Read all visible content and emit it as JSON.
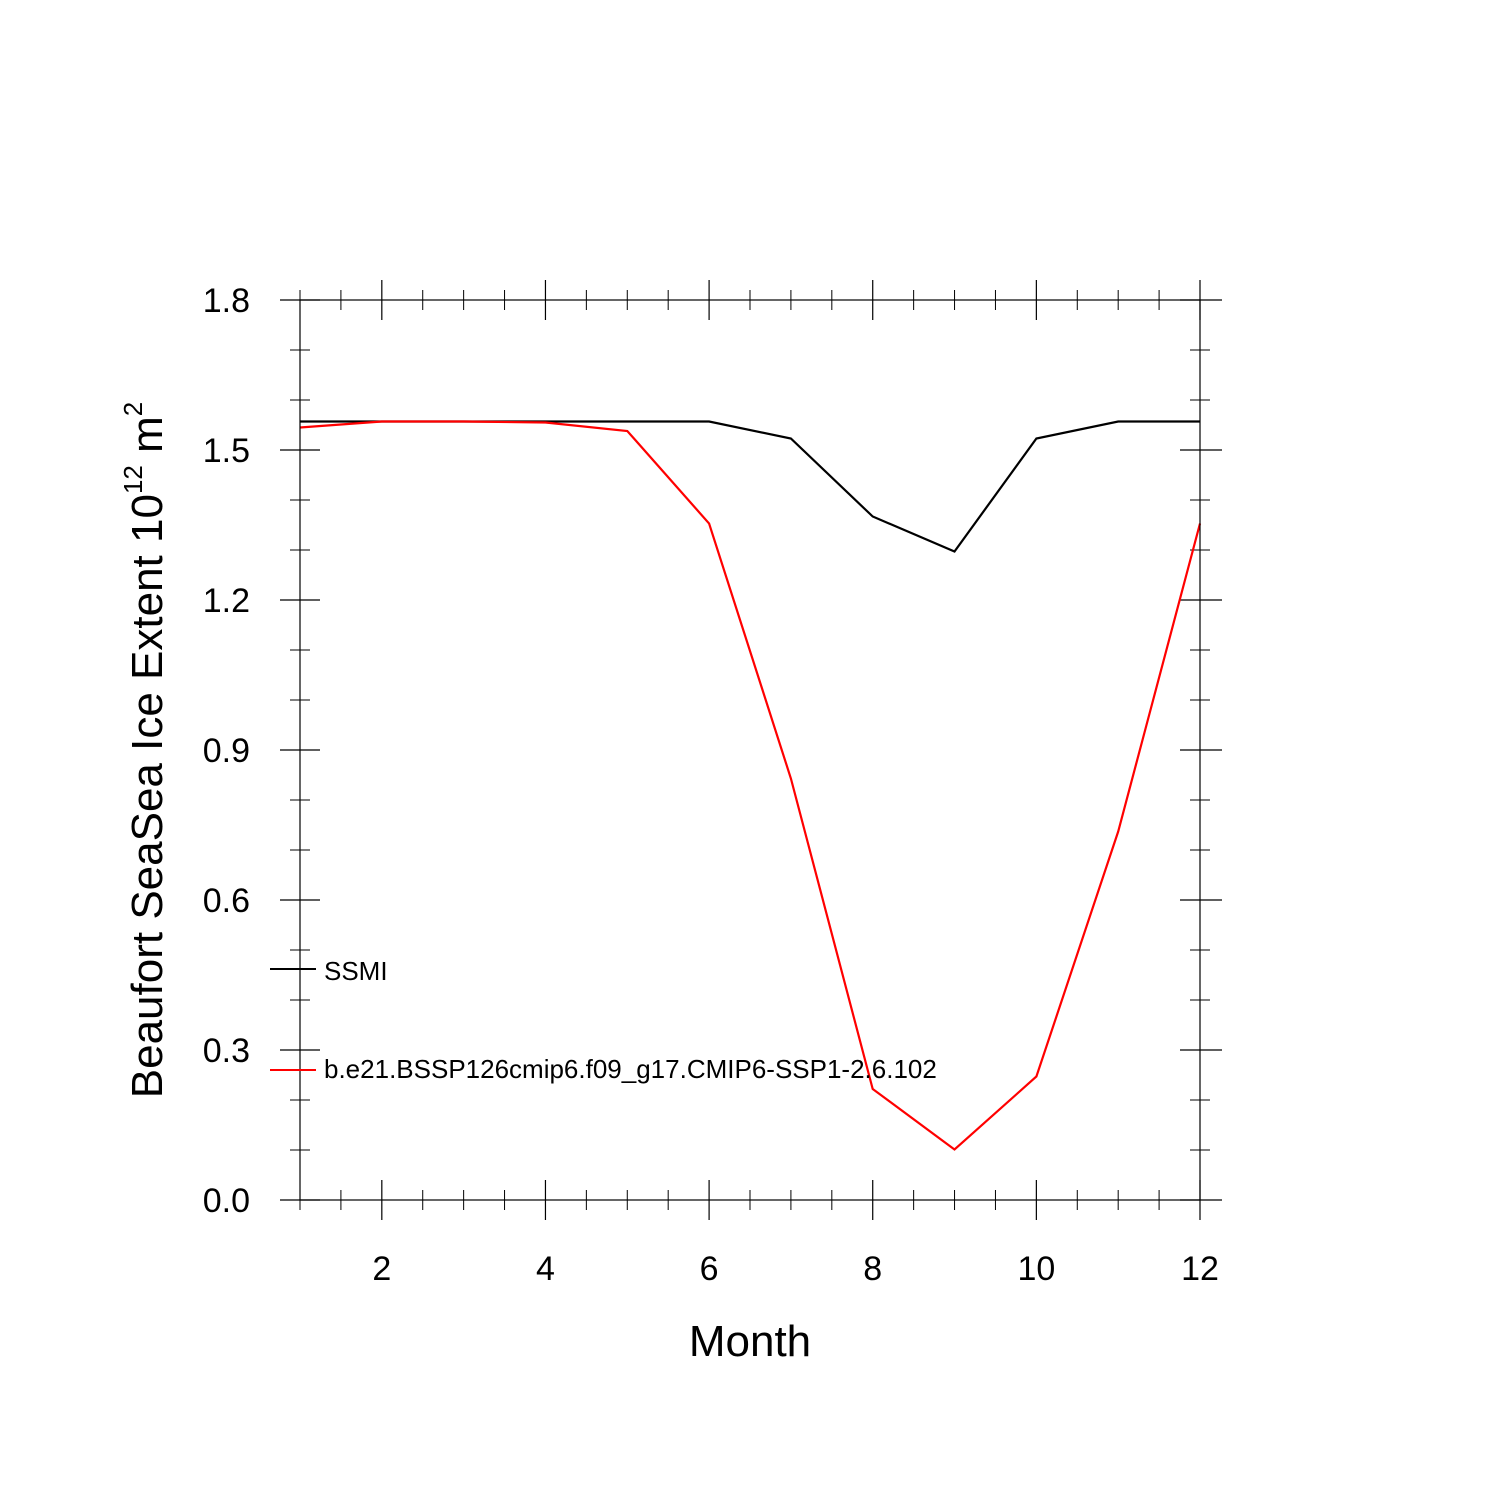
{
  "chart_data": {
    "type": "line",
    "xlabel": "Month",
    "ylabel": "Beaufort SeaSea Ice Extent 10",
    "ylabel_sup": "12",
    "ylabel_unit": " m",
    "ylabel_unit_sup": "2",
    "xlim": [
      1,
      12
    ],
    "ylim": [
      0,
      1.8
    ],
    "xticks": [
      2,
      4,
      6,
      8,
      10,
      12
    ],
    "yticks": [
      "0.0",
      "0.3",
      "0.6",
      "0.9",
      "1.2",
      "1.5",
      "1.8"
    ],
    "x": [
      1,
      2,
      3,
      4,
      5,
      6,
      7,
      8,
      9,
      10,
      11,
      12
    ],
    "series": [
      {
        "name": "SSMI",
        "color": "#000000",
        "values": [
          1.557,
          1.557,
          1.557,
          1.557,
          1.557,
          1.557,
          1.523,
          1.367,
          1.297,
          1.523,
          1.557,
          1.557
        ]
      },
      {
        "name": "b.e21.BSSP126cmip6.f09_g17.CMIP6-SSP1-2.6.102",
        "color": "#ff0000",
        "values": [
          1.545,
          1.557,
          1.557,
          1.555,
          1.538,
          1.353,
          0.843,
          0.222,
          0.101,
          0.247,
          0.737,
          1.353
        ]
      }
    ],
    "grid": false,
    "legend_position": "inside-bottom-left"
  }
}
